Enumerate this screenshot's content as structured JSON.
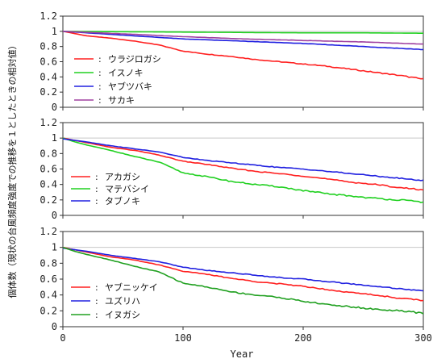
{
  "chart_data": {
    "ylabel": "個体数（現状の台風頻度強度での推移を１としたときの相対値）",
    "xlabel": "Year",
    "x_ticks": [
      0,
      100,
      200,
      300
    ],
    "y_ticks": [
      0,
      0.2,
      0.4,
      0.6,
      0.8,
      1.0,
      1.2
    ],
    "y_tick_labels": [
      "0",
      "0.2",
      "0.4",
      "0.6",
      "0.8",
      "1",
      "1.2"
    ],
    "panels": [
      {
        "type": "line",
        "xlim": [
          0,
          300
        ],
        "ylim": [
          0,
          1.2
        ],
        "legend_position": "middle-left",
        "series": [
          {
            "name": "ウラジロガシ",
            "color": "#ff2020",
            "x": [
              0,
              10,
              20,
              40,
              60,
              80,
              100,
              120,
              140,
              160,
              180,
              200,
              220,
              240,
              260,
              280,
              300
            ],
            "y": [
              1.0,
              0.97,
              0.94,
              0.91,
              0.87,
              0.82,
              0.74,
              0.7,
              0.67,
              0.63,
              0.6,
              0.57,
              0.54,
              0.5,
              0.46,
              0.42,
              0.37
            ]
          },
          {
            "name": "イスノキ",
            "color": "#20d020",
            "x": [
              0,
              50,
              100,
              150,
              200,
              250,
              300
            ],
            "y": [
              1.0,
              0.995,
              0.99,
              0.985,
              0.98,
              0.98,
              0.975
            ]
          },
          {
            "name": "ヤブツバキ",
            "color": "#2020e0",
            "x": [
              0,
              30,
              60,
              100,
              150,
              200,
              250,
              300
            ],
            "y": [
              1.0,
              0.97,
              0.94,
              0.9,
              0.87,
              0.84,
              0.8,
              0.76
            ]
          },
          {
            "name": "サカキ",
            "color": "#a040a0",
            "x": [
              0,
              30,
              60,
              100,
              150,
              200,
              250,
              300
            ],
            "y": [
              1.0,
              0.98,
              0.96,
              0.93,
              0.9,
              0.88,
              0.86,
              0.83
            ]
          }
        ]
      },
      {
        "type": "line",
        "xlim": [
          0,
          300
        ],
        "ylim": [
          0,
          1.2
        ],
        "legend_position": "middle-left",
        "series": [
          {
            "name": "アカガシ",
            "color": "#ff2020",
            "x": [
              0,
              10,
              20,
              40,
              60,
              80,
              100,
              120,
              140,
              160,
              180,
              200,
              220,
              240,
              260,
              280,
              300
            ],
            "y": [
              1.0,
              0.97,
              0.94,
              0.88,
              0.84,
              0.78,
              0.7,
              0.66,
              0.61,
              0.57,
              0.54,
              0.51,
              0.47,
              0.43,
              0.4,
              0.36,
              0.33
            ]
          },
          {
            "name": "マテバシイ",
            "color": "#20d020",
            "x": [
              0,
              10,
              20,
              40,
              60,
              80,
              100,
              120,
              140,
              160,
              180,
              200,
              220,
              240,
              260,
              280,
              300
            ],
            "y": [
              1.0,
              0.95,
              0.91,
              0.84,
              0.76,
              0.69,
              0.55,
              0.5,
              0.44,
              0.4,
              0.37,
              0.32,
              0.28,
              0.25,
              0.22,
              0.2,
              0.17
            ]
          },
          {
            "name": "タブノキ",
            "color": "#2020e0",
            "x": [
              0,
              10,
              20,
              40,
              60,
              80,
              100,
              120,
              140,
              160,
              180,
              200,
              220,
              240,
              260,
              280,
              300
            ],
            "y": [
              0.99,
              0.97,
              0.95,
              0.9,
              0.86,
              0.82,
              0.75,
              0.71,
              0.68,
              0.65,
              0.62,
              0.6,
              0.57,
              0.54,
              0.51,
              0.48,
              0.45
            ]
          }
        ]
      },
      {
        "type": "line",
        "xlim": [
          0,
          300
        ],
        "ylim": [
          0,
          1.2
        ],
        "legend_position": "lower-left",
        "series": [
          {
            "name": "ヤブニッケイ",
            "color": "#ff2020",
            "x": [
              0,
              10,
              20,
              40,
              60,
              80,
              100,
              120,
              140,
              160,
              180,
              200,
              220,
              240,
              260,
              280,
              300
            ],
            "y": [
              1.0,
              0.97,
              0.94,
              0.88,
              0.84,
              0.78,
              0.7,
              0.66,
              0.61,
              0.57,
              0.54,
              0.51,
              0.47,
              0.43,
              0.4,
              0.36,
              0.33
            ]
          },
          {
            "name": "ユズリハ",
            "color": "#2020e0",
            "x": [
              0,
              10,
              20,
              40,
              60,
              80,
              100,
              120,
              140,
              160,
              180,
              200,
              220,
              240,
              260,
              280,
              300
            ],
            "y": [
              0.99,
              0.97,
              0.95,
              0.9,
              0.86,
              0.82,
              0.75,
              0.71,
              0.68,
              0.65,
              0.62,
              0.6,
              0.57,
              0.54,
              0.51,
              0.48,
              0.45
            ]
          },
          {
            "name": "イヌガシ",
            "color": "#20a020",
            "x": [
              0,
              10,
              20,
              40,
              60,
              80,
              100,
              120,
              140,
              160,
              180,
              200,
              220,
              240,
              260,
              280,
              300
            ],
            "y": [
              1.0,
              0.95,
              0.91,
              0.84,
              0.76,
              0.69,
              0.55,
              0.5,
              0.44,
              0.4,
              0.37,
              0.32,
              0.28,
              0.25,
              0.22,
              0.2,
              0.17
            ]
          }
        ]
      }
    ]
  }
}
